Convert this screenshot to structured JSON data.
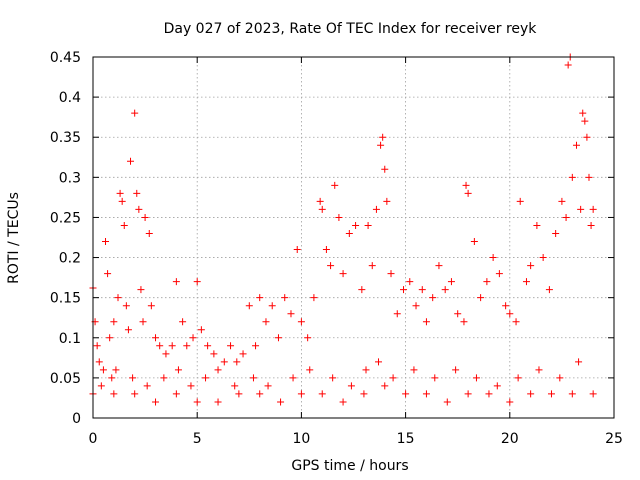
{
  "chart_data": {
    "type": "scatter",
    "title": "Day 027 of 2023, Rate Of TEC Index for receiver reyk",
    "xlabel": "GPS time / hours",
    "ylabel": "ROTI / TECUs",
    "xlim": [
      0,
      25
    ],
    "ylim": [
      0,
      0.45
    ],
    "xticks": [
      "0",
      "5",
      "10",
      "15",
      "20",
      "25"
    ],
    "yticks": [
      "0",
      "0.05",
      "0.1",
      "0.15",
      "0.2",
      "0.25",
      "0.3",
      "0.35",
      "0.4",
      "0.45"
    ],
    "grid": true,
    "marker": "+",
    "color": "#ff0000",
    "series": [
      {
        "x": [
          0.0,
          0.1,
          0.2,
          0.3,
          0.5,
          0.6,
          0.7,
          0.8,
          1.0,
          1.2,
          1.3,
          1.4,
          1.5,
          1.6,
          1.7,
          1.8,
          2.0,
          2.1,
          2.2,
          2.3,
          2.4,
          2.5,
          2.7,
          2.8,
          3.0,
          3.2,
          3.5,
          3.8,
          4.0,
          4.3,
          4.5,
          4.8,
          5.0,
          5.2,
          5.5,
          5.8,
          6.0,
          6.3,
          6.6,
          6.9,
          7.2,
          7.5,
          7.8,
          8.0,
          8.3,
          8.6,
          8.9,
          9.2,
          9.5,
          9.8,
          10.0,
          10.3,
          10.6,
          10.9,
          11.0,
          11.2,
          11.4,
          11.6,
          11.8,
          12.0,
          12.3,
          12.6,
          12.9,
          13.2,
          13.4,
          13.6,
          13.8,
          13.9,
          14.0,
          14.1,
          14.3,
          14.6,
          14.9,
          15.2,
          15.5,
          15.8,
          16.0,
          16.3,
          16.6,
          16.9,
          17.2,
          17.5,
          17.8,
          17.9,
          18.0,
          18.3,
          18.6,
          18.9,
          19.2,
          19.5,
          19.8,
          20.0,
          20.3,
          20.5,
          20.8,
          21.0,
          21.3,
          21.6,
          21.9,
          22.2,
          22.5,
          22.7,
          22.8,
          22.9,
          23.0,
          23.2,
          23.4,
          23.5,
          23.6,
          23.7,
          23.8,
          23.9,
          24.0,
          0.4,
          0.9,
          1.1,
          1.9,
          2.6,
          3.4,
          4.1,
          4.7,
          5.4,
          6.8,
          7.7,
          8.4,
          9.6,
          10.4,
          11.5,
          12.4,
          13.1,
          13.7,
          14.4,
          15.4,
          16.4,
          17.4,
          18.4,
          19.4,
          20.4,
          21.4,
          22.4,
          23.3,
          0.0,
          1.0,
          2.0,
          3.0,
          4.0,
          5.0,
          6.0,
          7.0,
          8.0,
          9.0,
          10.0,
          11.0,
          12.0,
          13.0,
          14.0,
          15.0,
          16.0,
          17.0,
          18.0,
          19.0,
          20.0,
          21.0,
          22.0,
          23.0,
          24.0
        ],
        "y": [
          0.162,
          0.12,
          0.09,
          0.07,
          0.06,
          0.22,
          0.18,
          0.1,
          0.12,
          0.15,
          0.28,
          0.27,
          0.24,
          0.14,
          0.11,
          0.32,
          0.38,
          0.28,
          0.26,
          0.16,
          0.12,
          0.25,
          0.23,
          0.14,
          0.1,
          0.09,
          0.08,
          0.09,
          0.17,
          0.12,
          0.09,
          0.1,
          0.17,
          0.11,
          0.09,
          0.08,
          0.06,
          0.07,
          0.09,
          0.07,
          0.08,
          0.14,
          0.09,
          0.15,
          0.12,
          0.14,
          0.1,
          0.15,
          0.13,
          0.21,
          0.12,
          0.1,
          0.15,
          0.27,
          0.26,
          0.21,
          0.19,
          0.29,
          0.25,
          0.18,
          0.23,
          0.24,
          0.16,
          0.24,
          0.19,
          0.26,
          0.34,
          0.35,
          0.31,
          0.27,
          0.18,
          0.13,
          0.16,
          0.17,
          0.14,
          0.16,
          0.12,
          0.15,
          0.19,
          0.16,
          0.17,
          0.13,
          0.12,
          0.29,
          0.28,
          0.22,
          0.15,
          0.17,
          0.2,
          0.18,
          0.14,
          0.13,
          0.12,
          0.27,
          0.17,
          0.19,
          0.24,
          0.2,
          0.16,
          0.23,
          0.27,
          0.25,
          0.44,
          0.45,
          0.3,
          0.34,
          0.26,
          0.38,
          0.37,
          0.35,
          0.3,
          0.24,
          0.26,
          0.04,
          0.05,
          0.06,
          0.05,
          0.04,
          0.05,
          0.06,
          0.04,
          0.05,
          0.04,
          0.05,
          0.04,
          0.05,
          0.06,
          0.05,
          0.04,
          0.06,
          0.07,
          0.05,
          0.06,
          0.05,
          0.06,
          0.05,
          0.04,
          0.05,
          0.06,
          0.05,
          0.07,
          0.03,
          0.03,
          0.03,
          0.02,
          0.03,
          0.02,
          0.02,
          0.03,
          0.03,
          0.02,
          0.03,
          0.03,
          0.02,
          0.03,
          0.04,
          0.03,
          0.03,
          0.02,
          0.03,
          0.03,
          0.02,
          0.03,
          0.03,
          0.03,
          0.03
        ]
      }
    ]
  }
}
